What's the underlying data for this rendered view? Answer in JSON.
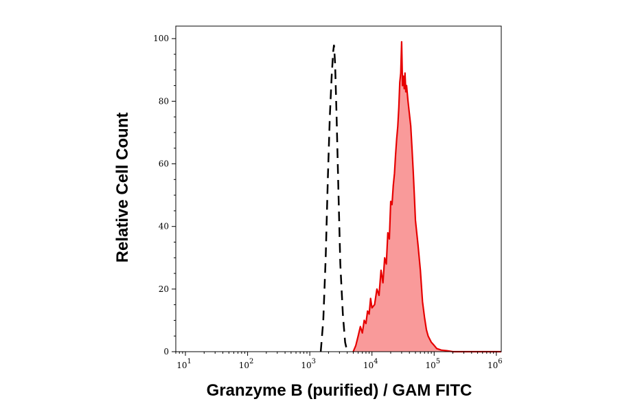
{
  "chart_data": {
    "type": "area",
    "title": "",
    "xlabel": "Granzyme B (purified) / GAM FITC",
    "ylabel": "Relative Cell Count",
    "x_scale": "log",
    "xlim": [
      7,
      1200000
    ],
    "ylim": [
      0,
      104
    ],
    "grid": false,
    "legend": "none",
    "x_ticks": [
      {
        "value": 10,
        "base": "10",
        "exp": "1"
      },
      {
        "value": 100,
        "base": "10",
        "exp": "2"
      },
      {
        "value": 1000,
        "base": "10",
        "exp": "3"
      },
      {
        "value": 10000,
        "base": "10",
        "exp": "4"
      },
      {
        "value": 100000,
        "base": "10",
        "exp": "5"
      },
      {
        "value": 1000000,
        "base": "10",
        "exp": "6"
      }
    ],
    "y_ticks": [
      {
        "value": 0,
        "label": "0"
      },
      {
        "value": 20,
        "label": "20"
      },
      {
        "value": 40,
        "label": "40"
      },
      {
        "value": 60,
        "label": "60"
      },
      {
        "value": 80,
        "label": "80"
      },
      {
        "value": 100,
        "label": "100"
      }
    ],
    "series": [
      {
        "style": "dashed-outline",
        "color": "#000000",
        "x": [
          1500,
          1650,
          1800,
          1950,
          2100,
          2250,
          2380,
          2450,
          2550,
          2700,
          2900,
          3100,
          3400,
          3700,
          4000
        ],
        "y": [
          0,
          10,
          30,
          55,
          75,
          88,
          96,
          98,
          92,
          75,
          50,
          28,
          12,
          3,
          0
        ]
      },
      {
        "style": "filled",
        "color": "#e60000",
        "fill": "#f99a9a",
        "x": [
          5000,
          5500,
          6000,
          6500,
          7000,
          7500,
          8000,
          8500,
          9000,
          9500,
          10000,
          11000,
          12000,
          13000,
          14000,
          15000,
          16000,
          17000,
          18000,
          19000,
          20000,
          21000,
          22000,
          23000,
          24000,
          25000,
          26000,
          27000,
          28000,
          29000,
          30000,
          31000,
          32000,
          33000,
          34000,
          35000,
          36000,
          38000,
          40000,
          42000,
          44000,
          46000,
          48000,
          50000,
          55000,
          60000,
          65000,
          70000,
          75000,
          80000,
          90000,
          100000,
          110000,
          130000,
          160000,
          200000,
          300000,
          500000,
          800000,
          1200000
        ],
        "y": [
          0,
          2,
          5,
          8,
          6,
          10,
          9,
          13,
          12,
          17,
          14,
          15,
          20,
          18,
          26,
          22,
          30,
          28,
          38,
          36,
          48,
          47,
          53,
          57,
          63,
          68,
          72,
          78,
          86,
          89,
          99,
          85,
          88,
          84,
          89,
          83,
          85,
          80,
          76,
          72,
          65,
          58,
          50,
          42,
          34,
          26,
          16,
          11,
          7,
          5,
          3,
          2,
          1,
          0.5,
          0.3,
          0,
          0,
          0,
          0,
          0
        ]
      }
    ]
  }
}
